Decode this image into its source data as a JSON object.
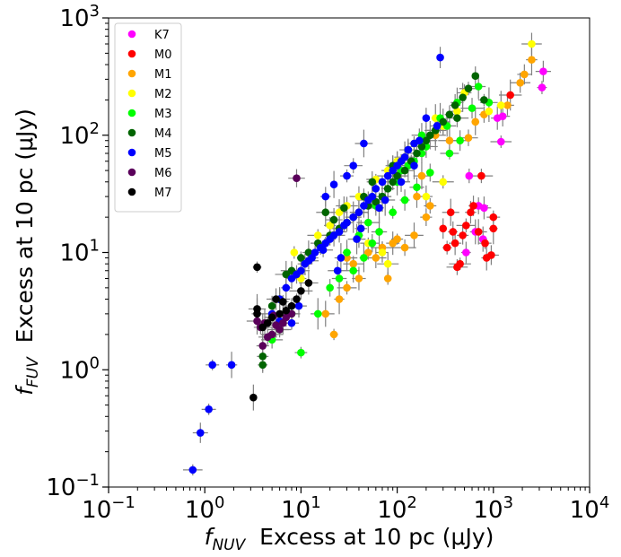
{
  "chart_data": {
    "type": "scatter",
    "xscale": "log",
    "yscale": "log",
    "xlim": [
      0.1,
      10000
    ],
    "ylim": [
      0.1,
      1000
    ],
    "grid": false,
    "legend_position": "top-left",
    "x_ticks": [
      {
        "base": "10",
        "exp": "−1"
      },
      {
        "base": "10",
        "exp": "0"
      },
      {
        "base": "10",
        "exp": "1"
      },
      {
        "base": "10",
        "exp": "2"
      },
      {
        "base": "10",
        "exp": "3"
      },
      {
        "base": "10",
        "exp": "4"
      }
    ],
    "y_ticks": [
      {
        "base": "10",
        "exp": "−1"
      },
      {
        "base": "10",
        "exp": "0"
      },
      {
        "base": "10",
        "exp": "1"
      },
      {
        "base": "10",
        "exp": "2"
      },
      {
        "base": "10",
        "exp": "3"
      }
    ],
    "xlabel": {
      "var": "f",
      "sub": "NUV",
      "text": "  Excess at 10 pc (μJy)"
    },
    "ylabel": {
      "var": "f",
      "sub": "FUV",
      "text": "  Excess at 10 pc (μJy)"
    },
    "series": [
      {
        "name": "K7",
        "color": "#ff00ff",
        "points": [
          [
            3300,
            350
          ],
          [
            3200,
            255
          ],
          [
            1250,
            145
          ],
          [
            1200,
            88
          ],
          [
            1100,
            140
          ],
          [
            700,
            25
          ],
          [
            650,
            15
          ],
          [
            520,
            10
          ],
          [
            780,
            13
          ],
          [
            800,
            24
          ],
          [
            560,
            45
          ]
        ]
      },
      {
        "name": "M0",
        "color": "#ff0000",
        "points": [
          [
            1500,
            220
          ],
          [
            1000,
            20
          ],
          [
            1000,
            16
          ],
          [
            950,
            9.5
          ],
          [
            850,
            9
          ],
          [
            750,
            45
          ],
          [
            620,
            25
          ],
          [
            580,
            22
          ],
          [
            520,
            17
          ],
          [
            480,
            14
          ],
          [
            450,
            8
          ],
          [
            420,
            7.5
          ],
          [
            380,
            15
          ],
          [
            400,
            12
          ],
          [
            360,
            22
          ],
          [
            330,
            11
          ],
          [
            300,
            16
          ],
          [
            820,
            12
          ],
          [
            700,
            15
          ]
        ]
      },
      {
        "name": "M1",
        "color": "#ffa500",
        "points": [
          [
            2500,
            440
          ],
          [
            2100,
            330
          ],
          [
            1900,
            280
          ],
          [
            1400,
            180
          ],
          [
            800,
            150
          ],
          [
            650,
            130
          ],
          [
            550,
            95
          ],
          [
            350,
            90
          ],
          [
            250,
            100
          ],
          [
            180,
            45
          ],
          [
            160,
            30
          ],
          [
            200,
            20
          ],
          [
            220,
            25
          ],
          [
            150,
            14
          ],
          [
            120,
            11
          ],
          [
            100,
            13
          ],
          [
            90,
            12
          ],
          [
            70,
            11
          ],
          [
            60,
            9
          ],
          [
            40,
            6
          ],
          [
            30,
            5
          ],
          [
            25,
            4
          ],
          [
            22,
            2
          ],
          [
            18,
            3
          ],
          [
            30,
            9
          ],
          [
            35,
            8
          ],
          [
            50,
            10
          ],
          [
            80,
            6
          ]
        ]
      },
      {
        "name": "M2",
        "color": "#ffff00",
        "points": [
          [
            2500,
            600
          ],
          [
            1200,
            180
          ],
          [
            900,
            160
          ],
          [
            500,
            230
          ],
          [
            420,
            160
          ],
          [
            300,
            120
          ],
          [
            250,
            140
          ],
          [
            150,
            85
          ],
          [
            120,
            65
          ],
          [
            100,
            60
          ],
          [
            80,
            50
          ],
          [
            60,
            42
          ],
          [
            40,
            30
          ],
          [
            30,
            25
          ],
          [
            25,
            22
          ],
          [
            20,
            17
          ],
          [
            15,
            14
          ],
          [
            8.5,
            10
          ],
          [
            10,
            6
          ],
          [
            50,
            12
          ],
          [
            70,
            10
          ],
          [
            80,
            8
          ],
          [
            200,
            30
          ],
          [
            300,
            40
          ]
        ]
      },
      {
        "name": "M3",
        "color": "#00ff00",
        "points": [
          [
            700,
            260
          ],
          [
            900,
            190
          ],
          [
            600,
            170
          ],
          [
            420,
            190
          ],
          [
            330,
            120
          ],
          [
            250,
            110
          ],
          [
            200,
            80
          ],
          [
            180,
            100
          ],
          [
            150,
            60
          ],
          [
            130,
            55
          ],
          [
            110,
            50
          ],
          [
            100,
            40
          ],
          [
            80,
            35
          ],
          [
            70,
            30
          ],
          [
            60,
            25
          ],
          [
            50,
            18
          ],
          [
            40,
            14
          ],
          [
            30,
            10
          ],
          [
            25,
            6
          ],
          [
            20,
            5
          ],
          [
            15,
            3
          ],
          [
            10,
            1.4
          ],
          [
            8,
            3
          ],
          [
            6,
            2.2
          ],
          [
            5,
            1.8
          ],
          [
            35,
            7
          ],
          [
            45,
            9
          ],
          [
            55,
            12
          ],
          [
            65,
            15
          ],
          [
            90,
            22
          ],
          [
            120,
            28
          ],
          [
            160,
            36
          ],
          [
            220,
            48
          ],
          [
            350,
            70
          ],
          [
            450,
            90
          ],
          [
            280,
            140
          ],
          [
            180,
            70
          ]
        ]
      },
      {
        "name": "M4",
        "color": "#006400",
        "points": [
          [
            650,
            320
          ],
          [
            550,
            250
          ],
          [
            480,
            210
          ],
          [
            400,
            180
          ],
          [
            350,
            150
          ],
          [
            300,
            130
          ],
          [
            250,
            110
          ],
          [
            200,
            90
          ],
          [
            180,
            80
          ],
          [
            160,
            70
          ],
          [
            140,
            60
          ],
          [
            120,
            50
          ],
          [
            100,
            45
          ],
          [
            90,
            40
          ],
          [
            80,
            35
          ],
          [
            70,
            30
          ],
          [
            60,
            27
          ],
          [
            50,
            25
          ],
          [
            40,
            22
          ],
          [
            35,
            20
          ],
          [
            30,
            18
          ],
          [
            25,
            16
          ],
          [
            20,
            14
          ],
          [
            18,
            22
          ],
          [
            15,
            12
          ],
          [
            12,
            10
          ],
          [
            10,
            9
          ],
          [
            8,
            7
          ],
          [
            7,
            6.5
          ],
          [
            6,
            4
          ],
          [
            5,
            3.5
          ],
          [
            4,
            1.3
          ],
          [
            4,
            1.1
          ],
          [
            800,
            200
          ],
          [
            420,
            140
          ],
          [
            220,
            100
          ],
          [
            130,
            75
          ],
          [
            90,
            55
          ],
          [
            55,
            40
          ],
          [
            45,
            30
          ],
          [
            28,
            24
          ],
          [
            22,
            19
          ]
        ]
      },
      {
        "name": "M5",
        "color": "#0000ff",
        "points": [
          [
            280,
            460
          ],
          [
            260,
            120
          ],
          [
            200,
            140
          ],
          [
            170,
            90
          ],
          [
            150,
            85
          ],
          [
            130,
            75
          ],
          [
            120,
            65
          ],
          [
            110,
            60
          ],
          [
            100,
            55
          ],
          [
            90,
            50
          ],
          [
            80,
            45
          ],
          [
            70,
            40
          ],
          [
            60,
            35
          ],
          [
            55,
            30
          ],
          [
            50,
            28
          ],
          [
            45,
            25
          ],
          [
            40,
            22
          ],
          [
            35,
            20
          ],
          [
            30,
            18
          ],
          [
            28,
            17
          ],
          [
            25,
            15
          ],
          [
            22,
            14
          ],
          [
            20,
            13
          ],
          [
            18,
            12
          ],
          [
            16,
            11
          ],
          [
            14,
            10
          ],
          [
            13,
            9
          ],
          [
            12,
            8.5
          ],
          [
            11,
            8
          ],
          [
            10,
            7
          ],
          [
            9,
            6.5
          ],
          [
            8,
            6
          ],
          [
            7,
            5
          ],
          [
            6,
            4
          ],
          [
            5,
            3
          ],
          [
            8,
            2.5
          ],
          [
            6,
            2.6
          ],
          [
            45,
            85
          ],
          [
            35,
            55
          ],
          [
            30,
            45
          ],
          [
            22,
            38
          ],
          [
            18,
            30
          ],
          [
            1.2,
            1.1
          ],
          [
            1.9,
            1.1
          ],
          [
            1.1,
            0.46
          ],
          [
            0.9,
            0.29
          ],
          [
            0.75,
            0.14
          ],
          [
            110,
            40
          ],
          [
            150,
            55
          ],
          [
            75,
            28
          ],
          [
            65,
            24
          ],
          [
            42,
            16
          ],
          [
            38,
            13
          ],
          [
            26,
            9
          ],
          [
            24,
            7
          ],
          [
            17,
            10.5
          ],
          [
            9.5,
            3.5
          ]
        ]
      },
      {
        "name": "M6",
        "color": "#5a005a",
        "points": [
          [
            9,
            43
          ],
          [
            8,
            3
          ],
          [
            7,
            2.8
          ],
          [
            6.5,
            2.5
          ],
          [
            6,
            2.2
          ],
          [
            5.5,
            2.4
          ],
          [
            5,
            2
          ],
          [
            4.5,
            1.9
          ],
          [
            4,
            1.6
          ],
          [
            4.2,
            2.5
          ],
          [
            3.8,
            2.3
          ],
          [
            3.5,
            2.6
          ],
          [
            5.2,
            2.9
          ]
        ]
      },
      {
        "name": "M7",
        "color": "#000000",
        "points": [
          [
            3.5,
            7.5
          ],
          [
            10,
            4.7
          ],
          [
            9,
            4
          ],
          [
            8,
            3.5
          ],
          [
            7,
            3.2
          ],
          [
            6,
            3
          ],
          [
            5,
            2.8
          ],
          [
            4.5,
            2.5
          ],
          [
            4,
            2.3
          ],
          [
            3.5,
            3
          ],
          [
            3.5,
            3.3
          ],
          [
            3.2,
            0.58
          ],
          [
            6.5,
            3.8
          ],
          [
            5.5,
            4
          ],
          [
            12,
            5.5
          ]
        ]
      }
    ]
  }
}
